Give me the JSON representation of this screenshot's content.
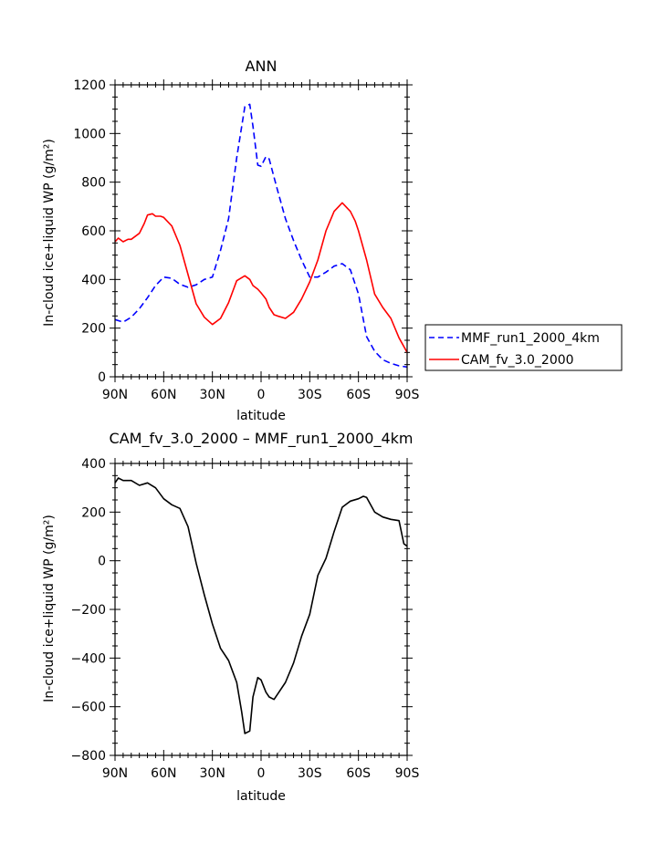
{
  "chart_data": [
    {
      "type": "line",
      "title": "ANN",
      "xlabel": "latitude",
      "ylabel": "In-cloud ice+liquid WP (g/m²)",
      "xlim": [
        90,
        -90
      ],
      "ylim": [
        0,
        1200
      ],
      "x_tick_values": [
        90,
        60,
        30,
        0,
        -30,
        -60,
        -90
      ],
      "x_tick_labels": [
        "90N",
        "60N",
        "30N",
        "0",
        "30S",
        "60S",
        "90S"
      ],
      "y_tick_values": [
        0,
        200,
        400,
        600,
        800,
        1000,
        1200
      ],
      "y_tick_labels": [
        "0",
        "200",
        "400",
        "600",
        "800",
        "1000",
        "1200"
      ],
      "legend_position": "right-outside",
      "series": [
        {
          "name": "MMF_run1_2000_4km",
          "color": "#0000ff",
          "dash": "dashed",
          "x": [
            90,
            85,
            80,
            75,
            70,
            65,
            60,
            55,
            50,
            45,
            40,
            35,
            30,
            25,
            20,
            15,
            10,
            7,
            5,
            2,
            0,
            -3,
            -5,
            -8,
            -10,
            -15,
            -20,
            -25,
            -30,
            -35,
            -40,
            -45,
            -50,
            -55,
            -60,
            -65,
            -70,
            -75,
            -80,
            -85,
            -90
          ],
          "y": [
            235,
            225,
            245,
            280,
            325,
            375,
            410,
            405,
            380,
            368,
            378,
            400,
            410,
            520,
            650,
            900,
            1110,
            1120,
            1030,
            870,
            865,
            905,
            895,
            820,
            770,
            650,
            560,
            480,
            410,
            410,
            430,
            455,
            465,
            440,
            340,
            165,
            105,
            70,
            55,
            45,
            40
          ]
        },
        {
          "name": "CAM_fv_3.0_2000",
          "color": "#ff0000",
          "dash": "solid",
          "x": [
            90,
            88,
            85,
            82,
            80,
            75,
            72,
            70,
            67,
            65,
            62,
            60,
            55,
            50,
            45,
            40,
            35,
            30,
            25,
            20,
            15,
            10,
            7,
            5,
            2,
            0,
            -3,
            -5,
            -8,
            -10,
            -15,
            -20,
            -25,
            -30,
            -35,
            -40,
            -45,
            -50,
            -55,
            -58,
            -60,
            -65,
            -70,
            -75,
            -80,
            -85,
            -90
          ],
          "y": [
            555,
            570,
            555,
            565,
            565,
            590,
            630,
            665,
            670,
            660,
            660,
            655,
            620,
            540,
            420,
            300,
            245,
            215,
            240,
            305,
            395,
            415,
            400,
            375,
            360,
            345,
            320,
            285,
            255,
            250,
            240,
            265,
            320,
            390,
            480,
            600,
            680,
            715,
            680,
            640,
            600,
            480,
            340,
            285,
            240,
            160,
            100
          ]
        }
      ]
    },
    {
      "type": "line",
      "title": "CAM_fv_3.0_2000 – MMF_run1_2000_4km",
      "xlabel": "latitude",
      "ylabel": "In-cloud ice+liquid WP (g/m²)",
      "xlim": [
        90,
        -90
      ],
      "ylim": [
        -800,
        400
      ],
      "x_tick_values": [
        90,
        60,
        30,
        0,
        -30,
        -60,
        -90
      ],
      "x_tick_labels": [
        "90N",
        "60N",
        "30N",
        "0",
        "30S",
        "60S",
        "90S"
      ],
      "y_tick_values": [
        -800,
        -600,
        -400,
        -200,
        0,
        200,
        400
      ],
      "y_tick_labels": [
        "−800",
        "−600",
        "−400",
        "−200",
        "0",
        "200",
        "400"
      ],
      "series": [
        {
          "color": "#000000",
          "dash": "solid",
          "x": [
            90,
            88,
            85,
            80,
            75,
            70,
            65,
            60,
            55,
            50,
            45,
            40,
            35,
            30,
            25,
            20,
            15,
            12,
            10,
            7,
            5,
            2,
            0,
            -3,
            -5,
            -8,
            -10,
            -15,
            -20,
            -25,
            -30,
            -35,
            -40,
            -45,
            -50,
            -55,
            -60,
            -63,
            -65,
            -70,
            -75,
            -80,
            -85,
            -88,
            -90
          ],
          "y": [
            320,
            340,
            330,
            330,
            310,
            320,
            300,
            255,
            230,
            215,
            140,
            -10,
            -140,
            -260,
            -360,
            -410,
            -500,
            -620,
            -710,
            -700,
            -560,
            -480,
            -490,
            -540,
            -560,
            -570,
            -550,
            -500,
            -420,
            -310,
            -220,
            -60,
            10,
            120,
            220,
            245,
            255,
            265,
            260,
            200,
            180,
            170,
            165,
            70,
            60
          ]
        }
      ]
    }
  ]
}
